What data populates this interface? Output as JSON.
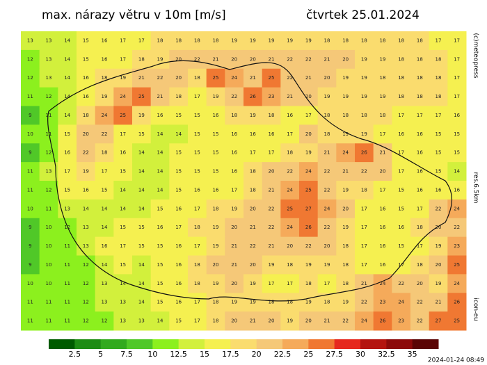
{
  "header": {
    "title": "max. nárazy větru v 10m [m/s]",
    "date": "čtvrtek 25.01.2024"
  },
  "side_labels": {
    "copyright": "(c)meteopress",
    "resolution": "res.6.5km",
    "model": "icon-eu"
  },
  "timestamp": "2024-01-24 08:49",
  "colorbar": {
    "levels": [
      2.5,
      5,
      7.5,
      10,
      12.5,
      15,
      17.5,
      20,
      22.5,
      25,
      27.5,
      30,
      32.5,
      35
    ],
    "colors": [
      "#005a00",
      "#1e8c14",
      "#32aa1e",
      "#50c828",
      "#8cf01e",
      "#d2f03c",
      "#f5f050",
      "#fadc6e",
      "#f5c878",
      "#f5aa5a",
      "#f07832",
      "#e6281e",
      "#b4140f",
      "#8c0a0a",
      "#5a0505"
    ]
  },
  "grid": {
    "values": [
      [
        13,
        13,
        14,
        15,
        16,
        17,
        17,
        18,
        18,
        18,
        18,
        19,
        19,
        19,
        19,
        19,
        18,
        18,
        18,
        18,
        18,
        18,
        17,
        17
      ],
      [
        12,
        13,
        14,
        15,
        16,
        17,
        18,
        19,
        20,
        22,
        21,
        20,
        20,
        21,
        22,
        22,
        21,
        20,
        19,
        19,
        18,
        18,
        18,
        17
      ],
      [
        12,
        13,
        14,
        16,
        18,
        19,
        21,
        22,
        20,
        18,
        25,
        24,
        21,
        25,
        22,
        21,
        20,
        19,
        19,
        18,
        18,
        18,
        18,
        17
      ],
      [
        11,
        12,
        14,
        16,
        19,
        24,
        25,
        21,
        18,
        17,
        19,
        22,
        26,
        23,
        21,
        20,
        19,
        19,
        19,
        19,
        18,
        18,
        18,
        17
      ],
      [
        9,
        11,
        14,
        18,
        24,
        25,
        19,
        16,
        15,
        15,
        16,
        18,
        19,
        18,
        16,
        17,
        18,
        18,
        18,
        18,
        17,
        17,
        17,
        16
      ],
      [
        10,
        11,
        15,
        20,
        22,
        17,
        15,
        14,
        14,
        15,
        15,
        16,
        16,
        16,
        17,
        20,
        18,
        19,
        19,
        17,
        16,
        16,
        15,
        15
      ],
      [
        9,
        12,
        16,
        22,
        18,
        16,
        14,
        14,
        15,
        15,
        15,
        16,
        17,
        17,
        18,
        19,
        21,
        24,
        26,
        21,
        17,
        16,
        15,
        15
      ],
      [
        11,
        13,
        17,
        19,
        17,
        15,
        14,
        14,
        15,
        15,
        15,
        16,
        18,
        20,
        22,
        24,
        22,
        21,
        22,
        20,
        17,
        16,
        15,
        14
      ],
      [
        11,
        12,
        15,
        16,
        15,
        14,
        14,
        14,
        15,
        16,
        16,
        17,
        18,
        21,
        24,
        25,
        22,
        19,
        18,
        17,
        15,
        16,
        16,
        16
      ],
      [
        10,
        11,
        13,
        14,
        14,
        14,
        14,
        15,
        16,
        17,
        18,
        19,
        20,
        22,
        25,
        27,
        24,
        20,
        17,
        16,
        15,
        17,
        22,
        24
      ],
      [
        9,
        10,
        12,
        13,
        14,
        15,
        15,
        16,
        17,
        18,
        19,
        20,
        21,
        22,
        24,
        26,
        22,
        19,
        17,
        16,
        16,
        18,
        20,
        22
      ],
      [
        9,
        10,
        11,
        13,
        16,
        17,
        15,
        15,
        16,
        17,
        19,
        21,
        22,
        21,
        20,
        22,
        20,
        18,
        17,
        16,
        15,
        17,
        19,
        23
      ],
      [
        9,
        10,
        11,
        12,
        14,
        15,
        14,
        15,
        16,
        18,
        20,
        21,
        20,
        19,
        18,
        19,
        19,
        18,
        17,
        16,
        17,
        18,
        20,
        25
      ],
      [
        10,
        10,
        11,
        12,
        13,
        14,
        14,
        15,
        16,
        18,
        19,
        20,
        19,
        17,
        17,
        18,
        17,
        18,
        21,
        24,
        22,
        20,
        19,
        24
      ],
      [
        11,
        11,
        11,
        12,
        13,
        13,
        14,
        15,
        16,
        17,
        18,
        19,
        19,
        18,
        18,
        19,
        18,
        19,
        22,
        23,
        24,
        22,
        21,
        26
      ],
      [
        11,
        11,
        11,
        12,
        12,
        13,
        13,
        14,
        15,
        17,
        18,
        20,
        21,
        20,
        19,
        20,
        21,
        22,
        24,
        26,
        23,
        22,
        27,
        25
      ]
    ]
  }
}
